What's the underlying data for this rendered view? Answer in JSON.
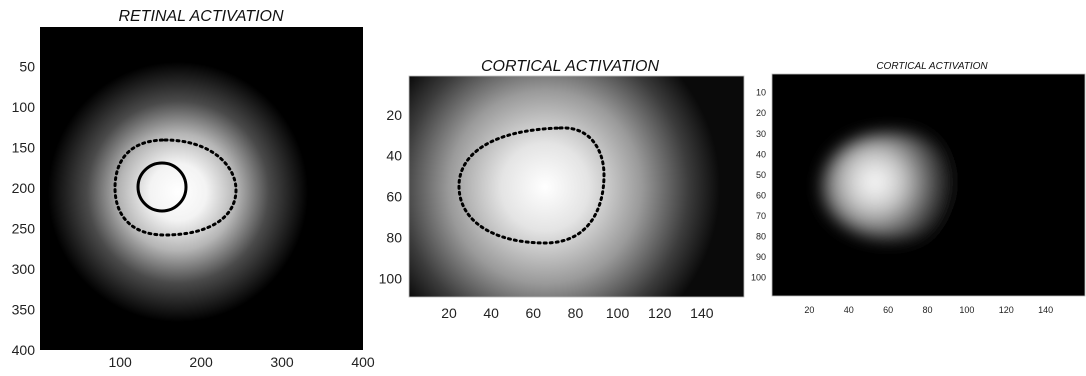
{
  "chart_data": [
    {
      "type": "heatmap",
      "title": "RETINAL ACTIVATION",
      "colormap": "gray",
      "xlim": [
        1,
        400
      ],
      "ylim": [
        1,
        400
      ],
      "y_reversed": true,
      "xticks": [
        100,
        200,
        300,
        400
      ],
      "yticks": [
        50,
        100,
        150,
        200,
        250,
        300,
        350,
        400
      ],
      "xtick_labels": [
        "100",
        "200",
        "300",
        "400"
      ],
      "ytick_labels": [
        "50",
        "100",
        "150",
        "200",
        "250",
        "300",
        "350",
        "400"
      ],
      "peak_center": [
        180,
        195
      ],
      "contours": [
        {
          "style": "solid",
          "shape": "circle",
          "center": [
            152,
            200
          ],
          "radius": 30
        },
        {
          "style": "dotted",
          "shape": "egg",
          "x_range": [
            93,
            237
          ],
          "y_range": [
            141,
            258
          ]
        }
      ]
    },
    {
      "type": "heatmap",
      "title": "CORTICAL ACTIVATION",
      "colormap": "gray",
      "xlim": [
        1,
        160
      ],
      "ylim": [
        1,
        109
      ],
      "y_reversed": true,
      "xticks": [
        20,
        40,
        60,
        80,
        100,
        120,
        140
      ],
      "yticks": [
        20,
        40,
        60,
        80,
        100
      ],
      "xtick_labels": [
        "20",
        "40",
        "60",
        "80",
        "100",
        "120",
        "140"
      ],
      "ytick_labels": [
        "20",
        "40",
        "60",
        "80",
        "100"
      ],
      "peak_center": [
        55,
        57
      ],
      "contours": [
        {
          "style": "dotted",
          "shape": "egg",
          "x_range": [
            26,
            98
          ],
          "y_range": [
            25,
            82
          ]
        }
      ]
    },
    {
      "type": "heatmap",
      "title": "CORTICAL ACTIVATION",
      "colormap": "gray",
      "xlim": [
        1,
        160
      ],
      "ylim": [
        1,
        109
      ],
      "y_reversed": true,
      "xticks": [
        20,
        40,
        60,
        80,
        100,
        120,
        140
      ],
      "yticks": [
        10,
        20,
        30,
        40,
        50,
        60,
        70,
        80,
        90,
        100
      ],
      "xtick_labels": [
        "20",
        "40",
        "60",
        "80",
        "100",
        "120",
        "140"
      ],
      "ytick_labels": [
        "10",
        "20",
        "30",
        "40",
        "50",
        "60",
        "70",
        "80",
        "90",
        "100"
      ],
      "peak_center": [
        52,
        54
      ],
      "contours": []
    }
  ]
}
